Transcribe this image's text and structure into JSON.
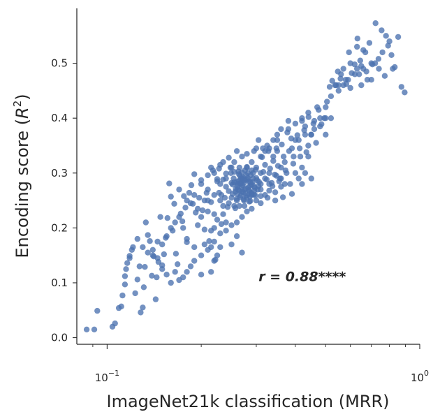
{
  "chart_data": {
    "type": "scatter",
    "title": "",
    "xlabel": "ImageNet21k classification (MRR)",
    "ylabel_main": "Encoding score (",
    "ylabel_var": "R",
    "ylabel_sup": "2",
    "ylabel_end": ")",
    "xscale": "log",
    "xlim": [
      0.08,
      1.0
    ],
    "ylim": [
      -0.012,
      0.6
    ],
    "x_ticks": [
      {
        "value": 0.1,
        "base": "10",
        "exp": "−1"
      },
      {
        "value": 1.0,
        "base": "10",
        "exp": "0"
      }
    ],
    "x_minor_ticks": [
      0.09,
      0.2,
      0.3,
      0.4,
      0.5,
      0.6,
      0.7,
      0.8,
      0.9
    ],
    "y_ticks": [
      0.0,
      0.1,
      0.2,
      0.3,
      0.4,
      0.5
    ],
    "y_tick_labels": [
      "0.0",
      "0.1",
      "0.2",
      "0.3",
      "0.4",
      "0.5"
    ],
    "grid": false,
    "legend": "none",
    "annotation": {
      "text": "r = 0.88****",
      "x": 0.305,
      "y": 0.112
    },
    "point_color": "#4c72b0",
    "points": [
      [
        0.086,
        0.015
      ],
      [
        0.091,
        0.015
      ],
      [
        0.093,
        0.049
      ],
      [
        0.104,
        0.02
      ],
      [
        0.106,
        0.026
      ],
      [
        0.109,
        0.054
      ],
      [
        0.111,
        0.057
      ],
      [
        0.112,
        0.077
      ],
      [
        0.114,
        0.097
      ],
      [
        0.114,
        0.112
      ],
      [
        0.116,
        0.136
      ],
      [
        0.118,
        0.149
      ],
      [
        0.121,
        0.165
      ],
      [
        0.123,
        0.081
      ],
      [
        0.125,
        0.106
      ],
      [
        0.127,
        0.13
      ],
      [
        0.128,
        0.046
      ],
      [
        0.13,
        0.055
      ],
      [
        0.131,
        0.092
      ],
      [
        0.132,
        0.129
      ],
      [
        0.133,
        0.21
      ],
      [
        0.135,
        0.187
      ],
      [
        0.137,
        0.176
      ],
      [
        0.139,
        0.113
      ],
      [
        0.141,
        0.148
      ],
      [
        0.143,
        0.07
      ],
      [
        0.144,
        0.11
      ],
      [
        0.146,
        0.138
      ],
      [
        0.148,
        0.22
      ],
      [
        0.15,
        0.132
      ],
      [
        0.152,
        0.152
      ],
      [
        0.154,
        0.182
      ],
      [
        0.156,
        0.218
      ],
      [
        0.158,
        0.281
      ],
      [
        0.16,
        0.257
      ],
      [
        0.162,
        0.195
      ],
      [
        0.164,
        0.244
      ],
      [
        0.166,
        0.153
      ],
      [
        0.168,
        0.134
      ],
      [
        0.17,
        0.27
      ],
      [
        0.172,
        0.226
      ],
      [
        0.174,
        0.212
      ],
      [
        0.176,
        0.258
      ],
      [
        0.178,
        0.237
      ],
      [
        0.18,
        0.174
      ],
      [
        0.183,
        0.264
      ],
      [
        0.186,
        0.278
      ],
      [
        0.188,
        0.244
      ],
      [
        0.19,
        0.298
      ],
      [
        0.192,
        0.228
      ],
      [
        0.195,
        0.205
      ],
      [
        0.197,
        0.255
      ],
      [
        0.2,
        0.287
      ],
      [
        0.202,
        0.232
      ],
      [
        0.205,
        0.197
      ],
      [
        0.208,
        0.264
      ],
      [
        0.21,
        0.296
      ],
      [
        0.212,
        0.176
      ],
      [
        0.215,
        0.247
      ],
      [
        0.218,
        0.305
      ],
      [
        0.22,
        0.225
      ],
      [
        0.222,
        0.142
      ],
      [
        0.225,
        0.289
      ],
      [
        0.228,
        0.264
      ],
      [
        0.23,
        0.315
      ],
      [
        0.232,
        0.207
      ],
      [
        0.235,
        0.288
      ],
      [
        0.238,
        0.255
      ],
      [
        0.24,
        0.299
      ],
      [
        0.243,
        0.238
      ],
      [
        0.245,
        0.267
      ],
      [
        0.248,
        0.31
      ],
      [
        0.25,
        0.282
      ],
      [
        0.252,
        0.262
      ],
      [
        0.255,
        0.302
      ],
      [
        0.257,
        0.236
      ],
      [
        0.26,
        0.284
      ],
      [
        0.262,
        0.27
      ],
      [
        0.264,
        0.298
      ],
      [
        0.266,
        0.256
      ],
      [
        0.268,
        0.281
      ],
      [
        0.27,
        0.266
      ],
      [
        0.272,
        0.292
      ],
      [
        0.274,
        0.252
      ],
      [
        0.276,
        0.287
      ],
      [
        0.278,
        0.272
      ],
      [
        0.28,
        0.259
      ],
      [
        0.282,
        0.291
      ],
      [
        0.285,
        0.267
      ],
      [
        0.287,
        0.283
      ],
      [
        0.29,
        0.262
      ],
      [
        0.293,
        0.3
      ],
      [
        0.295,
        0.276
      ],
      [
        0.298,
        0.259
      ],
      [
        0.3,
        0.291
      ],
      [
        0.303,
        0.27
      ],
      [
        0.306,
        0.284
      ],
      [
        0.31,
        0.258
      ],
      [
        0.313,
        0.329
      ],
      [
        0.316,
        0.302
      ],
      [
        0.32,
        0.315
      ],
      [
        0.324,
        0.288
      ],
      [
        0.328,
        0.34
      ],
      [
        0.332,
        0.308
      ],
      [
        0.336,
        0.282
      ],
      [
        0.34,
        0.322
      ],
      [
        0.344,
        0.297
      ],
      [
        0.348,
        0.345
      ],
      [
        0.352,
        0.313
      ],
      [
        0.357,
        0.29
      ],
      [
        0.362,
        0.352
      ],
      [
        0.367,
        0.33
      ],
      [
        0.372,
        0.305
      ],
      [
        0.377,
        0.374
      ],
      [
        0.382,
        0.34
      ],
      [
        0.388,
        0.363
      ],
      [
        0.394,
        0.317
      ],
      [
        0.4,
        0.39
      ],
      [
        0.406,
        0.369
      ],
      [
        0.413,
        0.345
      ],
      [
        0.42,
        0.395
      ],
      [
        0.427,
        0.378
      ],
      [
        0.434,
        0.338
      ],
      [
        0.441,
        0.402
      ],
      [
        0.449,
        0.37
      ],
      [
        0.457,
        0.39
      ],
      [
        0.466,
        0.355
      ],
      [
        0.475,
        0.415
      ],
      [
        0.485,
        0.389
      ],
      [
        0.495,
        0.4
      ],
      [
        0.505,
        0.43
      ],
      [
        0.515,
        0.457
      ],
      [
        0.525,
        0.468
      ],
      [
        0.536,
        0.46
      ],
      [
        0.547,
        0.485
      ],
      [
        0.558,
        0.472
      ],
      [
        0.57,
        0.49
      ],
      [
        0.582,
        0.462
      ],
      [
        0.594,
        0.52
      ],
      [
        0.606,
        0.482
      ],
      [
        0.619,
        0.498
      ],
      [
        0.632,
        0.545
      ],
      [
        0.645,
        0.505
      ],
      [
        0.66,
        0.524
      ],
      [
        0.675,
        0.485
      ],
      [
        0.69,
        0.537
      ],
      [
        0.706,
        0.498
      ],
      [
        0.722,
        0.573
      ],
      [
        0.738,
        0.508
      ],
      [
        0.755,
        0.56
      ],
      [
        0.773,
        0.477
      ],
      [
        0.792,
        0.532
      ],
      [
        0.812,
        0.515
      ],
      [
        0.832,
        0.493
      ],
      [
        0.853,
        0.548
      ],
      [
        0.874,
        0.457
      ],
      [
        0.895,
        0.447
      ],
      [
        0.27,
        0.29
      ],
      [
        0.262,
        0.28
      ],
      [
        0.282,
        0.3
      ],
      [
        0.272,
        0.265
      ],
      [
        0.258,
        0.271
      ],
      [
        0.287,
        0.277
      ],
      [
        0.266,
        0.295
      ],
      [
        0.279,
        0.256
      ],
      [
        0.254,
        0.29
      ],
      [
        0.292,
        0.284
      ],
      [
        0.276,
        0.305
      ],
      [
        0.261,
        0.262
      ],
      [
        0.289,
        0.264
      ],
      [
        0.269,
        0.274
      ],
      [
        0.284,
        0.269
      ],
      [
        0.264,
        0.286
      ],
      [
        0.274,
        0.282
      ],
      [
        0.297,
        0.273
      ],
      [
        0.252,
        0.279
      ],
      [
        0.281,
        0.288
      ],
      [
        0.278,
        0.296
      ],
      [
        0.268,
        0.259
      ],
      [
        0.293,
        0.29
      ],
      [
        0.263,
        0.303
      ],
      [
        0.286,
        0.257
      ],
      [
        0.271,
        0.278
      ],
      [
        0.257,
        0.266
      ],
      [
        0.295,
        0.261
      ],
      [
        0.275,
        0.27
      ],
      [
        0.266,
        0.281
      ],
      [
        0.287,
        0.249
      ],
      [
        0.299,
        0.306
      ],
      [
        0.249,
        0.3
      ],
      [
        0.283,
        0.274
      ],
      [
        0.273,
        0.288
      ],
      [
        0.26,
        0.253
      ],
      [
        0.29,
        0.279
      ],
      [
        0.277,
        0.263
      ],
      [
        0.265,
        0.268
      ],
      [
        0.302,
        0.287
      ],
      [
        0.28,
        0.311
      ],
      [
        0.255,
        0.283
      ],
      [
        0.268,
        0.29
      ],
      [
        0.288,
        0.296
      ],
      [
        0.274,
        0.25
      ],
      [
        0.296,
        0.268
      ],
      [
        0.261,
        0.275
      ],
      [
        0.284,
        0.285
      ],
      [
        0.27,
        0.301
      ],
      [
        0.305,
        0.276
      ],
      [
        0.32,
        0.26
      ],
      [
        0.338,
        0.276
      ],
      [
        0.355,
        0.285
      ],
      [
        0.375,
        0.3
      ],
      [
        0.31,
        0.27
      ],
      [
        0.33,
        0.268
      ],
      [
        0.348,
        0.295
      ],
      [
        0.365,
        0.256
      ],
      [
        0.385,
        0.28
      ],
      [
        0.345,
        0.25
      ],
      [
        0.326,
        0.255
      ],
      [
        0.36,
        0.275
      ],
      [
        0.39,
        0.262
      ],
      [
        0.41,
        0.29
      ],
      [
        0.42,
        0.31
      ],
      [
        0.43,
        0.3
      ],
      [
        0.395,
        0.33
      ],
      [
        0.37,
        0.32
      ],
      [
        0.34,
        0.33
      ],
      [
        0.325,
        0.35
      ],
      [
        0.305,
        0.36
      ],
      [
        0.295,
        0.34
      ],
      [
        0.315,
        0.345
      ],
      [
        0.35,
        0.36
      ],
      [
        0.38,
        0.38
      ],
      [
        0.4,
        0.36
      ],
      [
        0.415,
        0.33
      ],
      [
        0.44,
        0.35
      ],
      [
        0.46,
        0.38
      ],
      [
        0.48,
        0.4
      ],
      [
        0.5,
        0.42
      ],
      [
        0.52,
        0.44
      ],
      [
        0.54,
        0.46
      ],
      [
        0.56,
        0.48
      ],
      [
        0.6,
        0.5
      ],
      [
        0.65,
        0.495
      ],
      [
        0.7,
        0.5
      ],
      [
        0.68,
        0.47
      ],
      [
        0.63,
        0.49
      ],
      [
        0.58,
        0.47
      ],
      [
        0.55,
        0.45
      ],
      [
        0.5,
        0.4
      ],
      [
        0.47,
        0.42
      ],
      [
        0.45,
        0.37
      ],
      [
        0.44,
        0.33
      ],
      [
        0.43,
        0.37
      ],
      [
        0.25,
        0.31
      ],
      [
        0.245,
        0.328
      ],
      [
        0.235,
        0.32
      ],
      [
        0.228,
        0.308
      ],
      [
        0.22,
        0.3
      ],
      [
        0.215,
        0.31
      ],
      [
        0.225,
        0.285
      ],
      [
        0.24,
        0.275
      ],
      [
        0.232,
        0.26
      ],
      [
        0.25,
        0.255
      ],
      [
        0.255,
        0.24
      ],
      [
        0.245,
        0.245
      ],
      [
        0.235,
        0.24
      ],
      [
        0.265,
        0.24
      ],
      [
        0.275,
        0.24
      ],
      [
        0.285,
        0.248
      ],
      [
        0.3,
        0.25
      ],
      [
        0.31,
        0.245
      ],
      [
        0.29,
        0.235
      ],
      [
        0.28,
        0.23
      ],
      [
        0.27,
        0.22
      ],
      [
        0.26,
        0.21
      ],
      [
        0.25,
        0.205
      ],
      [
        0.24,
        0.195
      ],
      [
        0.23,
        0.19
      ],
      [
        0.22,
        0.175
      ],
      [
        0.215,
        0.165
      ],
      [
        0.21,
        0.16
      ],
      [
        0.205,
        0.17
      ],
      [
        0.2,
        0.15
      ],
      [
        0.19,
        0.14
      ],
      [
        0.185,
        0.13
      ],
      [
        0.18,
        0.12
      ],
      [
        0.175,
        0.11
      ],
      [
        0.17,
        0.105
      ],
      [
        0.165,
        0.12
      ],
      [
        0.16,
        0.1
      ],
      [
        0.155,
        0.115
      ],
      [
        0.15,
        0.125
      ],
      [
        0.145,
        0.145
      ],
      [
        0.14,
        0.15
      ],
      [
        0.135,
        0.155
      ],
      [
        0.13,
        0.165
      ],
      [
        0.125,
        0.18
      ],
      [
        0.12,
        0.16
      ],
      [
        0.118,
        0.145
      ],
      [
        0.115,
        0.125
      ],
      [
        0.2,
        0.22
      ],
      [
        0.205,
        0.25
      ],
      [
        0.21,
        0.23
      ],
      [
        0.225,
        0.215
      ],
      [
        0.235,
        0.225
      ],
      [
        0.24,
        0.21
      ],
      [
        0.22,
        0.2
      ],
      [
        0.215,
        0.195
      ],
      [
        0.26,
        0.185
      ],
      [
        0.27,
        0.155
      ],
      [
        0.25,
        0.17
      ],
      [
        0.23,
        0.165
      ],
      [
        0.225,
        0.15
      ],
      [
        0.22,
        0.14
      ],
      [
        0.215,
        0.12
      ],
      [
        0.2,
        0.115
      ],
      [
        0.19,
        0.165
      ],
      [
        0.18,
        0.18
      ],
      [
        0.175,
        0.2
      ],
      [
        0.17,
        0.22
      ],
      [
        0.165,
        0.21
      ],
      [
        0.16,
        0.2
      ],
      [
        0.155,
        0.185
      ],
      [
        0.15,
        0.17
      ],
      [
        0.145,
        0.175
      ],
      [
        0.14,
        0.16
      ],
      [
        0.31,
        0.33
      ],
      [
        0.32,
        0.34
      ],
      [
        0.33,
        0.345
      ],
      [
        0.29,
        0.32
      ],
      [
        0.3,
        0.31
      ],
      [
        0.28,
        0.335
      ],
      [
        0.27,
        0.33
      ],
      [
        0.26,
        0.34
      ],
      [
        0.255,
        0.32
      ],
      [
        0.3,
        0.345
      ],
      [
        0.35,
        0.34
      ],
      [
        0.36,
        0.31
      ],
      [
        0.37,
        0.28
      ],
      [
        0.345,
        0.265
      ],
      [
        0.33,
        0.28
      ],
      [
        0.32,
        0.29
      ],
      [
        0.31,
        0.3
      ],
      [
        0.29,
        0.305
      ],
      [
        0.28,
        0.31
      ],
      [
        0.265,
        0.31
      ],
      [
        0.24,
        0.29
      ],
      [
        0.23,
        0.28
      ],
      [
        0.22,
        0.26
      ],
      [
        0.21,
        0.27
      ],
      [
        0.2,
        0.28
      ],
      [
        0.19,
        0.26
      ],
      [
        0.185,
        0.245
      ],
      [
        0.18,
        0.25
      ],
      [
        0.195,
        0.235
      ],
      [
        0.21,
        0.25
      ],
      [
        0.23,
        0.25
      ],
      [
        0.26,
        0.25
      ],
      [
        0.29,
        0.26
      ],
      [
        0.31,
        0.28
      ],
      [
        0.33,
        0.3
      ],
      [
        0.36,
        0.29
      ],
      [
        0.4,
        0.3
      ],
      [
        0.42,
        0.28
      ],
      [
        0.45,
        0.29
      ],
      [
        0.39,
        0.345
      ],
      [
        0.41,
        0.36
      ],
      [
        0.43,
        0.385
      ],
      [
        0.38,
        0.395
      ],
      [
        0.36,
        0.38
      ],
      [
        0.35,
        0.37
      ],
      [
        0.34,
        0.36
      ],
      [
        0.46,
        0.395
      ],
      [
        0.42,
        0.4
      ],
      [
        0.44,
        0.41
      ],
      [
        0.48,
        0.385
      ],
      [
        0.5,
        0.37
      ],
      [
        0.52,
        0.4
      ],
      [
        0.55,
        0.46
      ],
      [
        0.57,
        0.46
      ],
      [
        0.59,
        0.47
      ],
      [
        0.62,
        0.48
      ],
      [
        0.64,
        0.48
      ],
      [
        0.66,
        0.49
      ],
      [
        0.72,
        0.5
      ],
      [
        0.74,
        0.49
      ],
      [
        0.76,
        0.52
      ],
      [
        0.8,
        0.54
      ],
      [
        0.78,
        0.55
      ],
      [
        0.67,
        0.52
      ],
      [
        0.63,
        0.53
      ],
      [
        0.6,
        0.455
      ],
      [
        0.65,
        0.46
      ],
      [
        0.7,
        0.47
      ],
      [
        0.82,
        0.49
      ]
    ]
  }
}
